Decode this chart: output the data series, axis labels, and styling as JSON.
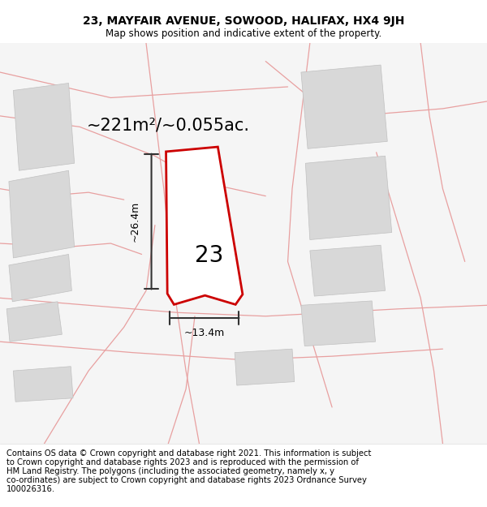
{
  "title": "23, MAYFAIR AVENUE, SOWOOD, HALIFAX, HX4 9JH",
  "subtitle": "Map shows position and indicative extent of the property.",
  "area_text": "~221m²/~0.055ac.",
  "width_label": "~13.4m",
  "height_label": "~26.4m",
  "property_number": "23",
  "footer_lines": [
    "Contains OS data © Crown copyright and database right 2021. This information is subject",
    "to Crown copyright and database rights 2023 and is reproduced with the permission of",
    "HM Land Registry. The polygons (including the associated geometry, namely x, y",
    "co-ordinates) are subject to Crown copyright and database rights 2023 Ordnance Survey",
    "100026316."
  ],
  "bg_color": "#ffffff",
  "map_bg": "#f5f5f5",
  "property_fill": "#ffffff",
  "property_edge": "#cc0000",
  "building_fill": "#d8d8d8",
  "building_edge": "#c0c0c0",
  "road_color": "#e8a0a0",
  "title_fontsize": 10,
  "subtitle_fontsize": 8.5,
  "area_fontsize": 15,
  "label_fontsize": 9,
  "number_fontsize": 20,
  "footer_fontsize": 7.2
}
